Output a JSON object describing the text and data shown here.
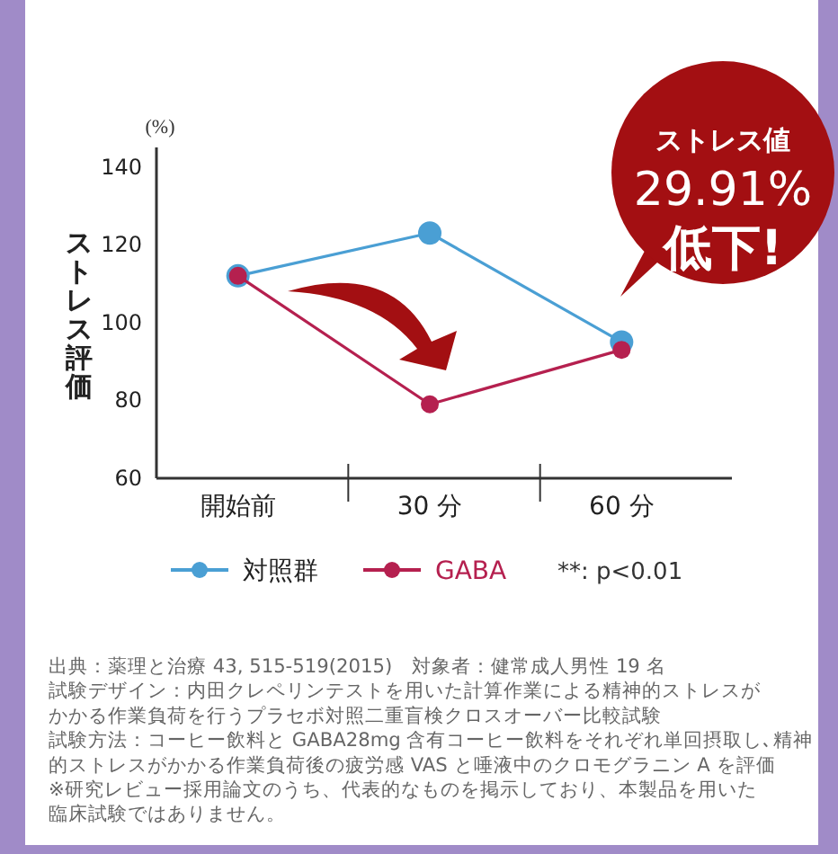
{
  "chart_data": {
    "type": "line",
    "ylabel": "ストレス評価",
    "categories": [
      "開始前",
      "30 分",
      "60 分"
    ],
    "series": [
      {
        "name": "対照群",
        "color": "#4a9fd4",
        "values": [
          112,
          123,
          95
        ]
      },
      {
        "name": "GABA",
        "color": "#b5204f",
        "values": [
          112,
          79,
          93
        ]
      }
    ],
    "ylim": [
      60,
      145
    ],
    "yticks": [
      60,
      80,
      100,
      120,
      140
    ],
    "grid": false,
    "legend": "bottom",
    "marker": "circle",
    "line_style": "solid",
    "annotations": [
      "(%)",
      "ストレス値",
      "29.91%",
      "低下!",
      "**: p<0.01",
      "出典：薬理と治療 43, 515-519(2015)　対象者：健常成人男性 19 名",
      "試験デザイン：内田クレペリンテストを用いた計算作業による精神的ストレスが",
      "かかる作業負荷を行うプラセボ対照二重盲検クロスオーバー比較試験",
      "試験方法：コーヒー飲料と GABA28mg 含有コーヒー飲料をそれぞれ単回摂取し､精神",
      "的ストレスがかかる作業負荷後の疲労感 VAS と唾液中のクロモグラニン A を評価",
      "※研究レビュー採用論文のうち、代表的なものを掲示しており、本製品を用いた",
      "臨床試験ではありません。"
    ]
  }
}
